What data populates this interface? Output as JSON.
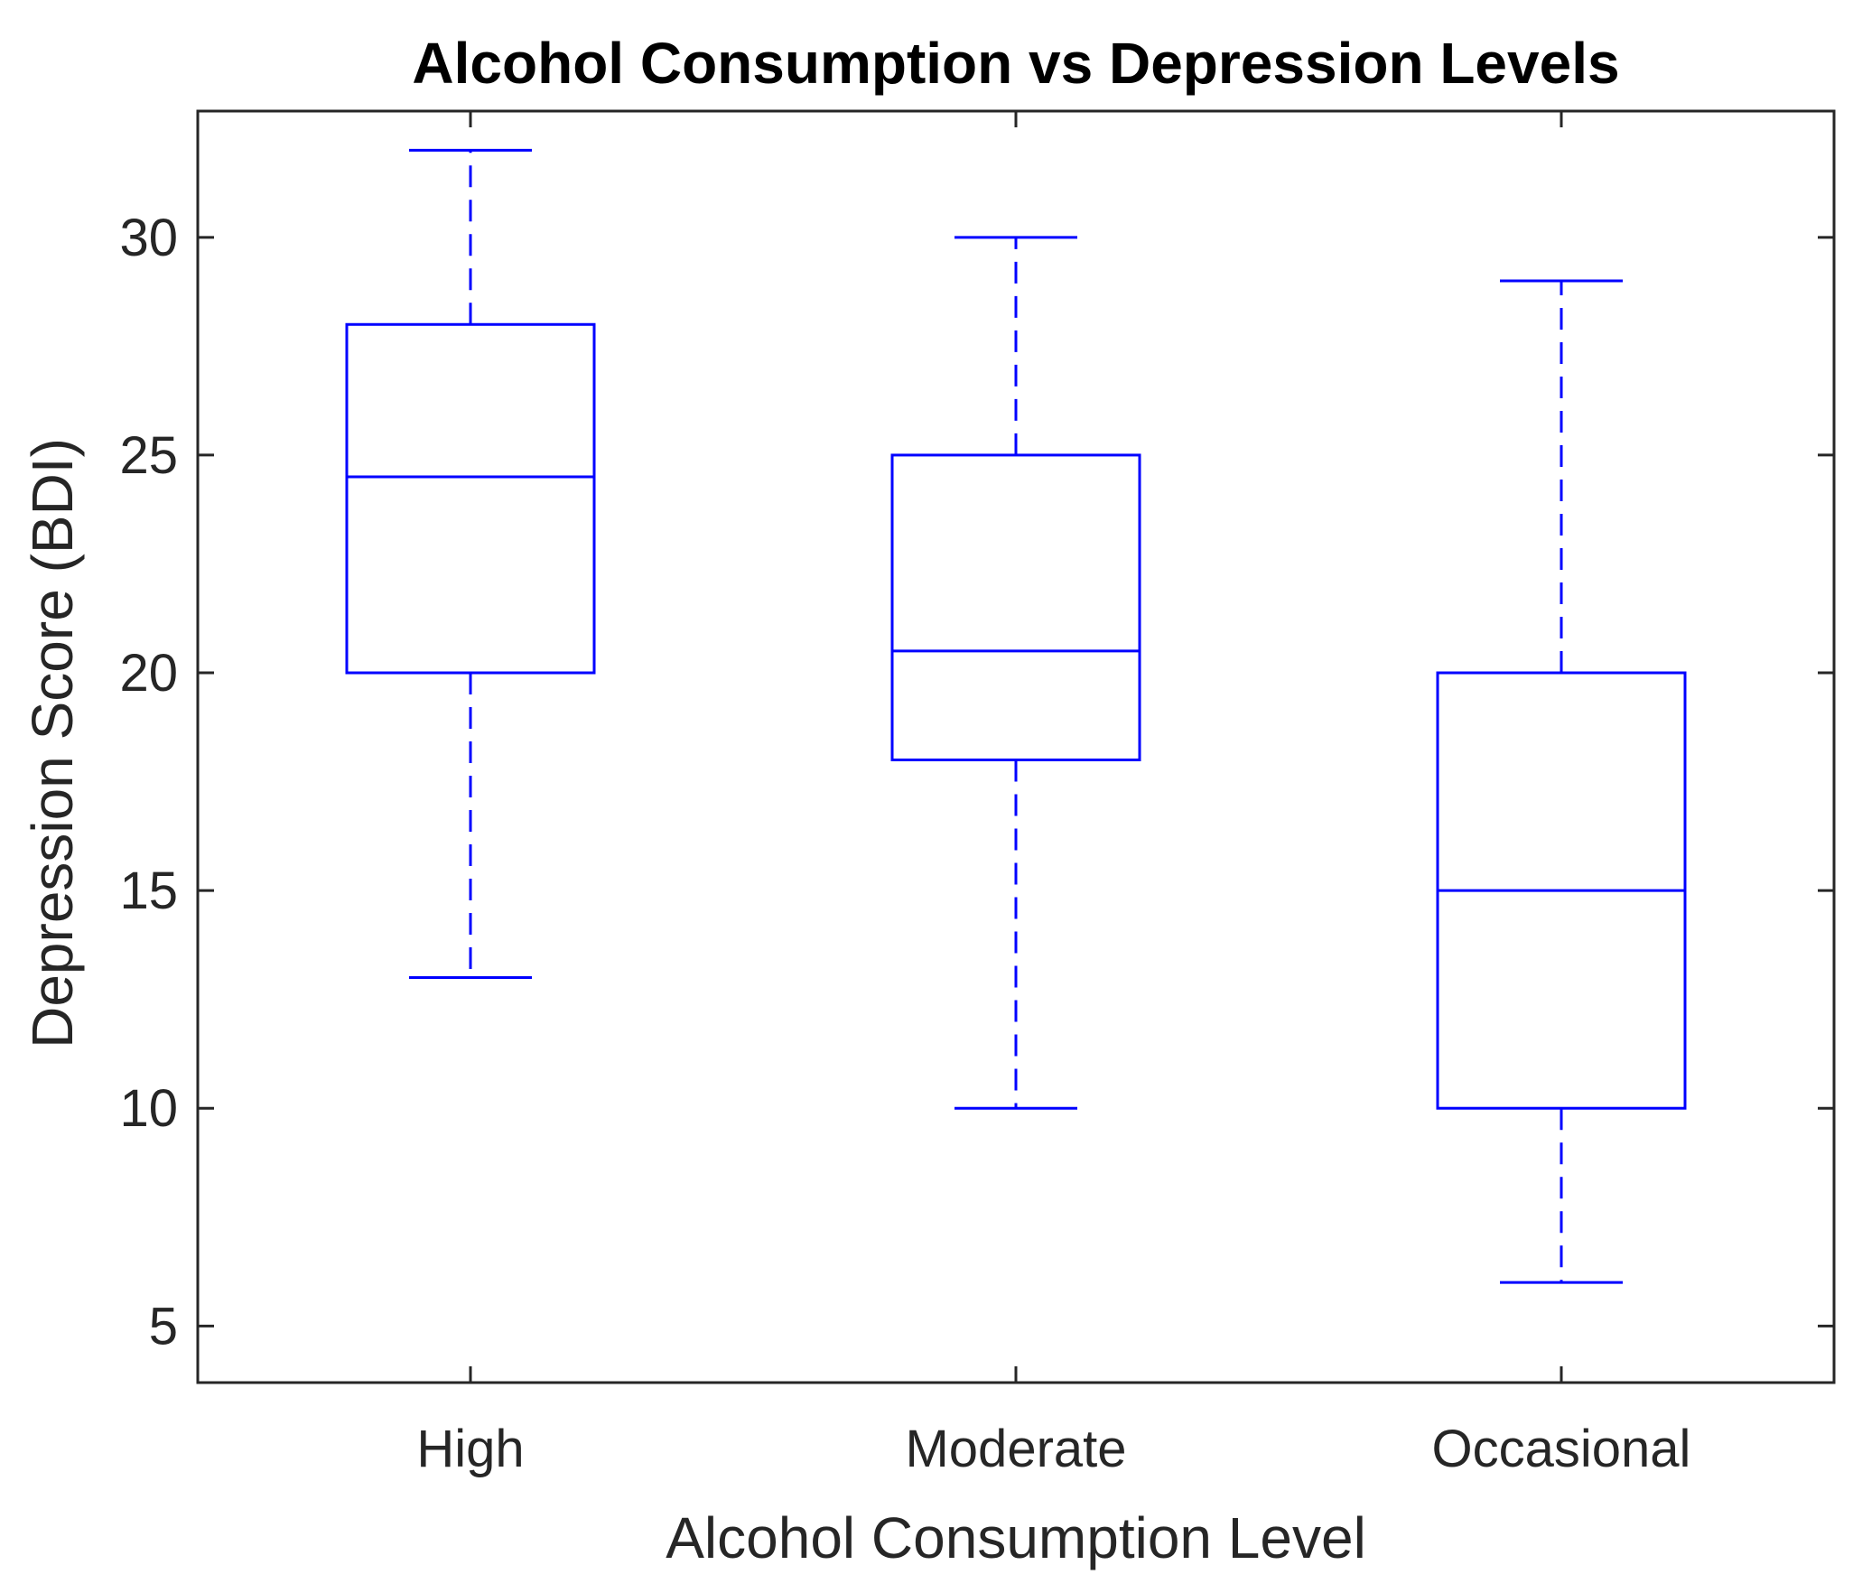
{
  "chart_data": {
    "type": "box",
    "title": "Alcohol Consumption vs Depression Levels",
    "xlabel": "Alcohol Consumption Level",
    "ylabel": "Depression Score (BDI)",
    "categories": [
      "High",
      "Moderate",
      "Occasional"
    ],
    "boxes": [
      {
        "name": "High",
        "whisker_low": 13,
        "q1": 20,
        "median": 24.5,
        "q3": 28,
        "whisker_high": 32
      },
      {
        "name": "Moderate",
        "whisker_low": 10,
        "q1": 18,
        "median": 20.5,
        "q3": 25,
        "whisker_high": 30
      },
      {
        "name": "Occasional",
        "whisker_low": 6,
        "q1": 10,
        "median": 15,
        "q3": 20,
        "whisker_high": 29
      }
    ],
    "ylim": [
      3.7,
      32.9
    ],
    "yticks": [
      5,
      10,
      15,
      20,
      25,
      30
    ],
    "grid": false,
    "box_color": "#0000ff",
    "axis_color": "#262626"
  }
}
